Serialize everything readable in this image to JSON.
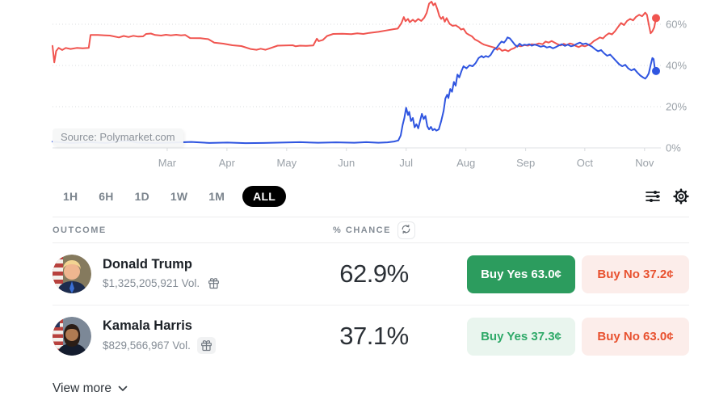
{
  "chart": {
    "source_label": "Source: Polymarket.com"
  },
  "toolbar": {
    "timeframes": [
      "1H",
      "6H",
      "1D",
      "1W",
      "1M",
      "ALL"
    ],
    "active_timeframe": "ALL"
  },
  "table": {
    "outcome_header": "OUTCOME",
    "chance_header": "% CHANCE"
  },
  "rows": [
    {
      "name": "Donald Trump",
      "volume": "$1,325,205,921 Vol.",
      "chance": "62.9%",
      "buy_yes": "Buy Yes 63.0¢",
      "buy_no": "Buy No 37.2¢"
    },
    {
      "name": "Kamala Harris",
      "volume": "$829,566,967 Vol.",
      "chance": "37.1%",
      "buy_yes": "Buy Yes 37.3¢",
      "buy_no": "Buy No 63.0¢"
    }
  ],
  "footer": {
    "view_more": "View more"
  },
  "colors": {
    "trump_line": "#f0544f",
    "harris_line": "#2f55e0",
    "buy_yes_solid": "#2c9c5e",
    "buy_yes_tint_bg": "#e9f5ee",
    "buy_yes_tint_text": "#2ea968",
    "buy_no_bg": "#fcedea",
    "buy_no_text": "#e8512f",
    "active_pill": "#000000",
    "axis_text": "#9aa1a8"
  },
  "chart_data": {
    "type": "line",
    "title": "",
    "xlabel": "",
    "ylabel": "% chance",
    "x_unit": "fraction of plot width (Jan 2024 to Nov 2024)",
    "ylim": [
      0,
      72
    ],
    "grid": "dotted horizontal gridlines at 20%, 40%, 60%; solid baseline at 0%",
    "legend_position": "none",
    "yticks": [
      {
        "label": "60%",
        "value": 60
      },
      {
        "label": "40%",
        "value": 40
      },
      {
        "label": "20%",
        "value": 20
      },
      {
        "label": "0%",
        "value": 0
      }
    ],
    "xticks": [
      {
        "label": "Mar",
        "f": 0.19
      },
      {
        "label": "Apr",
        "f": 0.289
      },
      {
        "label": "May",
        "f": 0.388
      },
      {
        "label": "Jun",
        "f": 0.487
      },
      {
        "label": "Jul",
        "f": 0.586
      },
      {
        "label": "Aug",
        "f": 0.685
      },
      {
        "label": "Sep",
        "f": 0.784
      },
      {
        "label": "Oct",
        "f": 0.882
      },
      {
        "label": "Nov",
        "f": 0.981
      }
    ],
    "series": [
      {
        "name": "Donald Trump",
        "color": "#f0544f",
        "end_value": 63.0,
        "points": [
          [
            0.0,
            49.5
          ],
          [
            0.003,
            41.5
          ],
          [
            0.006,
            47.0
          ],
          [
            0.01,
            48.5
          ],
          [
            0.016,
            47.5
          ],
          [
            0.022,
            48.5
          ],
          [
            0.03,
            48.0
          ],
          [
            0.04,
            48.5
          ],
          [
            0.05,
            48.3
          ],
          [
            0.06,
            48.5
          ],
          [
            0.063,
            54.8
          ],
          [
            0.075,
            54.8
          ],
          [
            0.095,
            54.5
          ],
          [
            0.11,
            53.6
          ],
          [
            0.118,
            54.3
          ],
          [
            0.126,
            53.8
          ],
          [
            0.134,
            54.4
          ],
          [
            0.142,
            54.0
          ],
          [
            0.15,
            54.1
          ],
          [
            0.155,
            55.3
          ],
          [
            0.163,
            55.5
          ],
          [
            0.17,
            54.8
          ],
          [
            0.18,
            54.5
          ],
          [
            0.188,
            54.9
          ],
          [
            0.196,
            54.6
          ],
          [
            0.205,
            54.9
          ],
          [
            0.213,
            54.6
          ],
          [
            0.22,
            54.8
          ],
          [
            0.228,
            53.3
          ],
          [
            0.245,
            53.2
          ],
          [
            0.258,
            52.8
          ],
          [
            0.268,
            51.1
          ],
          [
            0.283,
            50.6
          ],
          [
            0.298,
            49.8
          ],
          [
            0.313,
            49.4
          ],
          [
            0.328,
            48.0
          ],
          [
            0.338,
            47.6
          ],
          [
            0.345,
            48.1
          ],
          [
            0.353,
            47.6
          ],
          [
            0.363,
            48.6
          ],
          [
            0.373,
            49.6
          ],
          [
            0.385,
            49.7
          ],
          [
            0.398,
            49.8
          ],
          [
            0.403,
            49.3
          ],
          [
            0.41,
            49.6
          ],
          [
            0.42,
            49.5
          ],
          [
            0.432,
            49.7
          ],
          [
            0.438,
            53.0
          ],
          [
            0.441,
            51.8
          ],
          [
            0.448,
            52.4
          ],
          [
            0.455,
            54.3
          ],
          [
            0.465,
            55.3
          ],
          [
            0.48,
            55.4
          ],
          [
            0.495,
            55.2
          ],
          [
            0.505,
            55.6
          ],
          [
            0.515,
            55.3
          ],
          [
            0.525,
            55.8
          ],
          [
            0.54,
            56.3
          ],
          [
            0.553,
            57.0
          ],
          [
            0.565,
            57.6
          ],
          [
            0.572,
            57.9
          ],
          [
            0.578,
            60.5
          ],
          [
            0.582,
            63.5
          ],
          [
            0.585,
            61.5
          ],
          [
            0.589,
            62.6
          ],
          [
            0.592,
            61.0
          ],
          [
            0.597,
            62.2
          ],
          [
            0.601,
            61.2
          ],
          [
            0.606,
            62.6
          ],
          [
            0.611,
            61.6
          ],
          [
            0.616,
            63.2
          ],
          [
            0.62,
            65.5
          ],
          [
            0.624,
            70.0
          ],
          [
            0.628,
            71.0
          ],
          [
            0.631,
            69.2
          ],
          [
            0.634,
            70.2
          ],
          [
            0.638,
            67.0
          ],
          [
            0.641,
            64.0
          ],
          [
            0.644,
            62.6
          ],
          [
            0.647,
            63.6
          ],
          [
            0.65,
            61.2
          ],
          [
            0.653,
            63.0
          ],
          [
            0.658,
            60.2
          ],
          [
            0.663,
            59.2
          ],
          [
            0.668,
            59.5
          ],
          [
            0.673,
            58.6
          ],
          [
            0.677,
            57.4
          ],
          [
            0.681,
            57.8
          ],
          [
            0.686,
            55.6
          ],
          [
            0.69,
            54.9
          ],
          [
            0.695,
            54.1
          ],
          [
            0.7,
            52.6
          ],
          [
            0.705,
            51.9
          ],
          [
            0.71,
            50.9
          ],
          [
            0.715,
            50.1
          ],
          [
            0.72,
            49.7
          ],
          [
            0.727,
            49.1
          ],
          [
            0.733,
            48.6
          ],
          [
            0.737,
            47.6
          ],
          [
            0.74,
            48.4
          ],
          [
            0.745,
            47.1
          ],
          [
            0.75,
            47.6
          ],
          [
            0.755,
            46.9
          ],
          [
            0.76,
            47.9
          ],
          [
            0.765,
            48.4
          ],
          [
            0.77,
            49.6
          ],
          [
            0.776,
            49.3
          ],
          [
            0.782,
            49.9
          ],
          [
            0.788,
            49.6
          ],
          [
            0.794,
            50.3
          ],
          [
            0.8,
            50.1
          ],
          [
            0.806,
            50.7
          ],
          [
            0.812,
            50.3
          ],
          [
            0.817,
            51.6
          ],
          [
            0.822,
            51.1
          ],
          [
            0.827,
            51.9
          ],
          [
            0.832,
            51.1
          ],
          [
            0.837,
            50.3
          ],
          [
            0.842,
            49.7
          ],
          [
            0.847,
            50.5
          ],
          [
            0.852,
            49.9
          ],
          [
            0.857,
            50.7
          ],
          [
            0.862,
            50.3
          ],
          [
            0.867,
            49.5
          ],
          [
            0.872,
            48.9
          ],
          [
            0.877,
            49.7
          ],
          [
            0.882,
            49.3
          ],
          [
            0.887,
            49.9
          ],
          [
            0.892,
            50.5
          ],
          [
            0.897,
            51.9
          ],
          [
            0.902,
            52.7
          ],
          [
            0.907,
            53.6
          ],
          [
            0.912,
            53.1
          ],
          [
            0.917,
            54.6
          ],
          [
            0.922,
            55.6
          ],
          [
            0.927,
            55.1
          ],
          [
            0.932,
            56.6
          ],
          [
            0.937,
            58.6
          ],
          [
            0.942,
            60.6
          ],
          [
            0.947,
            59.6
          ],
          [
            0.952,
            61.6
          ],
          [
            0.957,
            62.6
          ],
          [
            0.962,
            61.9
          ],
          [
            0.967,
            63.6
          ],
          [
            0.972,
            64.6
          ],
          [
            0.977,
            63.9
          ],
          [
            0.982,
            65.6
          ],
          [
            0.985,
            64.6
          ],
          [
            0.988,
            60.0
          ],
          [
            0.991,
            55.6
          ],
          [
            0.994,
            56.6
          ],
          [
            0.997,
            58.5
          ],
          [
            1.0,
            63.0
          ]
        ]
      },
      {
        "name": "Kamala Harris",
        "color": "#2f55e0",
        "end_value": 37.3,
        "points": [
          [
            0.0,
            3.0
          ],
          [
            0.03,
            2.4
          ],
          [
            0.06,
            2.8
          ],
          [
            0.09,
            2.4
          ],
          [
            0.11,
            3.2
          ],
          [
            0.125,
            3.4
          ],
          [
            0.14,
            2.6
          ],
          [
            0.17,
            2.4
          ],
          [
            0.2,
            2.6
          ],
          [
            0.23,
            2.9
          ],
          [
            0.26,
            2.4
          ],
          [
            0.29,
            2.6
          ],
          [
            0.32,
            2.3
          ],
          [
            0.35,
            2.4
          ],
          [
            0.38,
            2.6
          ],
          [
            0.41,
            2.8
          ],
          [
            0.44,
            2.5
          ],
          [
            0.47,
            2.7
          ],
          [
            0.5,
            2.5
          ],
          [
            0.52,
            2.8
          ],
          [
            0.54,
            2.5
          ],
          [
            0.555,
            2.7
          ],
          [
            0.566,
            3.1
          ],
          [
            0.573,
            3.6
          ],
          [
            0.577,
            6.0
          ],
          [
            0.58,
            11.0
          ],
          [
            0.583,
            14.5
          ],
          [
            0.586,
            19.5
          ],
          [
            0.589,
            16.0
          ],
          [
            0.591,
            17.5
          ],
          [
            0.594,
            13.0
          ],
          [
            0.597,
            14.5
          ],
          [
            0.6,
            10.0
          ],
          [
            0.603,
            11.5
          ],
          [
            0.606,
            9.5
          ],
          [
            0.609,
            13.0
          ],
          [
            0.612,
            16.5
          ],
          [
            0.615,
            14.0
          ],
          [
            0.618,
            15.5
          ],
          [
            0.621,
            10.5
          ],
          [
            0.624,
            9.0
          ],
          [
            0.627,
            10.2
          ],
          [
            0.63,
            8.6
          ],
          [
            0.633,
            9.2
          ],
          [
            0.636,
            8.4
          ],
          [
            0.64,
            9.0
          ],
          [
            0.644,
            13.0
          ],
          [
            0.648,
            18.0
          ],
          [
            0.651,
            24.0
          ],
          [
            0.654,
            25.8
          ],
          [
            0.656,
            24.2
          ],
          [
            0.659,
            28.6
          ],
          [
            0.662,
            27.2
          ],
          [
            0.665,
            32.0
          ],
          [
            0.668,
            30.2
          ],
          [
            0.671,
            35.6
          ],
          [
            0.674,
            34.2
          ],
          [
            0.678,
            37.6
          ],
          [
            0.681,
            39.6
          ],
          [
            0.686,
            38.6
          ],
          [
            0.691,
            40.1
          ],
          [
            0.696,
            39.6
          ],
          [
            0.701,
            41.1
          ],
          [
            0.706,
            43.6
          ],
          [
            0.711,
            44.6
          ],
          [
            0.714,
            43.9
          ],
          [
            0.718,
            44.6
          ],
          [
            0.722,
            44.1
          ],
          [
            0.726,
            45.1
          ],
          [
            0.731,
            47.6
          ],
          [
            0.736,
            48.6
          ],
          [
            0.741,
            50.6
          ],
          [
            0.744,
            51.6
          ],
          [
            0.748,
            51.1
          ],
          [
            0.751,
            52.1
          ],
          [
            0.754,
            53.6
          ],
          [
            0.758,
            53.1
          ],
          [
            0.762,
            51.6
          ],
          [
            0.766,
            50.1
          ],
          [
            0.77,
            49.1
          ],
          [
            0.774,
            50.6
          ],
          [
            0.778,
            49.6
          ],
          [
            0.782,
            50.1
          ],
          [
            0.786,
            49.9
          ],
          [
            0.79,
            50.3
          ],
          [
            0.794,
            49.6
          ],
          [
            0.799,
            50.1
          ],
          [
            0.804,
            49.7
          ],
          [
            0.809,
            49.1
          ],
          [
            0.814,
            49.5
          ],
          [
            0.819,
            48.7
          ],
          [
            0.824,
            49.1
          ],
          [
            0.829,
            48.3
          ],
          [
            0.834,
            48.9
          ],
          [
            0.839,
            49.7
          ],
          [
            0.844,
            50.3
          ],
          [
            0.849,
            49.5
          ],
          [
            0.854,
            50.1
          ],
          [
            0.859,
            49.3
          ],
          [
            0.864,
            49.7
          ],
          [
            0.869,
            50.5
          ],
          [
            0.874,
            51.1
          ],
          [
            0.879,
            50.3
          ],
          [
            0.884,
            50.7
          ],
          [
            0.889,
            49.9
          ],
          [
            0.894,
            49.1
          ],
          [
            0.899,
            47.9
          ],
          [
            0.904,
            46.9
          ],
          [
            0.909,
            47.5
          ],
          [
            0.914,
            45.9
          ],
          [
            0.919,
            44.7
          ],
          [
            0.924,
            45.3
          ],
          [
            0.929,
            43.7
          ],
          [
            0.934,
            42.1
          ],
          [
            0.939,
            40.6
          ],
          [
            0.944,
            39.6
          ],
          [
            0.949,
            40.3
          ],
          [
            0.954,
            38.6
          ],
          [
            0.959,
            37.6
          ],
          [
            0.964,
            38.3
          ],
          [
            0.969,
            36.6
          ],
          [
            0.974,
            35.1
          ],
          [
            0.979,
            34.1
          ],
          [
            0.982,
            33.6
          ],
          [
            0.985,
            34.6
          ],
          [
            0.988,
            36.1
          ],
          [
            0.991,
            40.1
          ],
          [
            0.994,
            43.6
          ],
          [
            0.996,
            43.1
          ],
          [
            0.998,
            38.6
          ],
          [
            1.0,
            37.3
          ]
        ]
      }
    ]
  }
}
